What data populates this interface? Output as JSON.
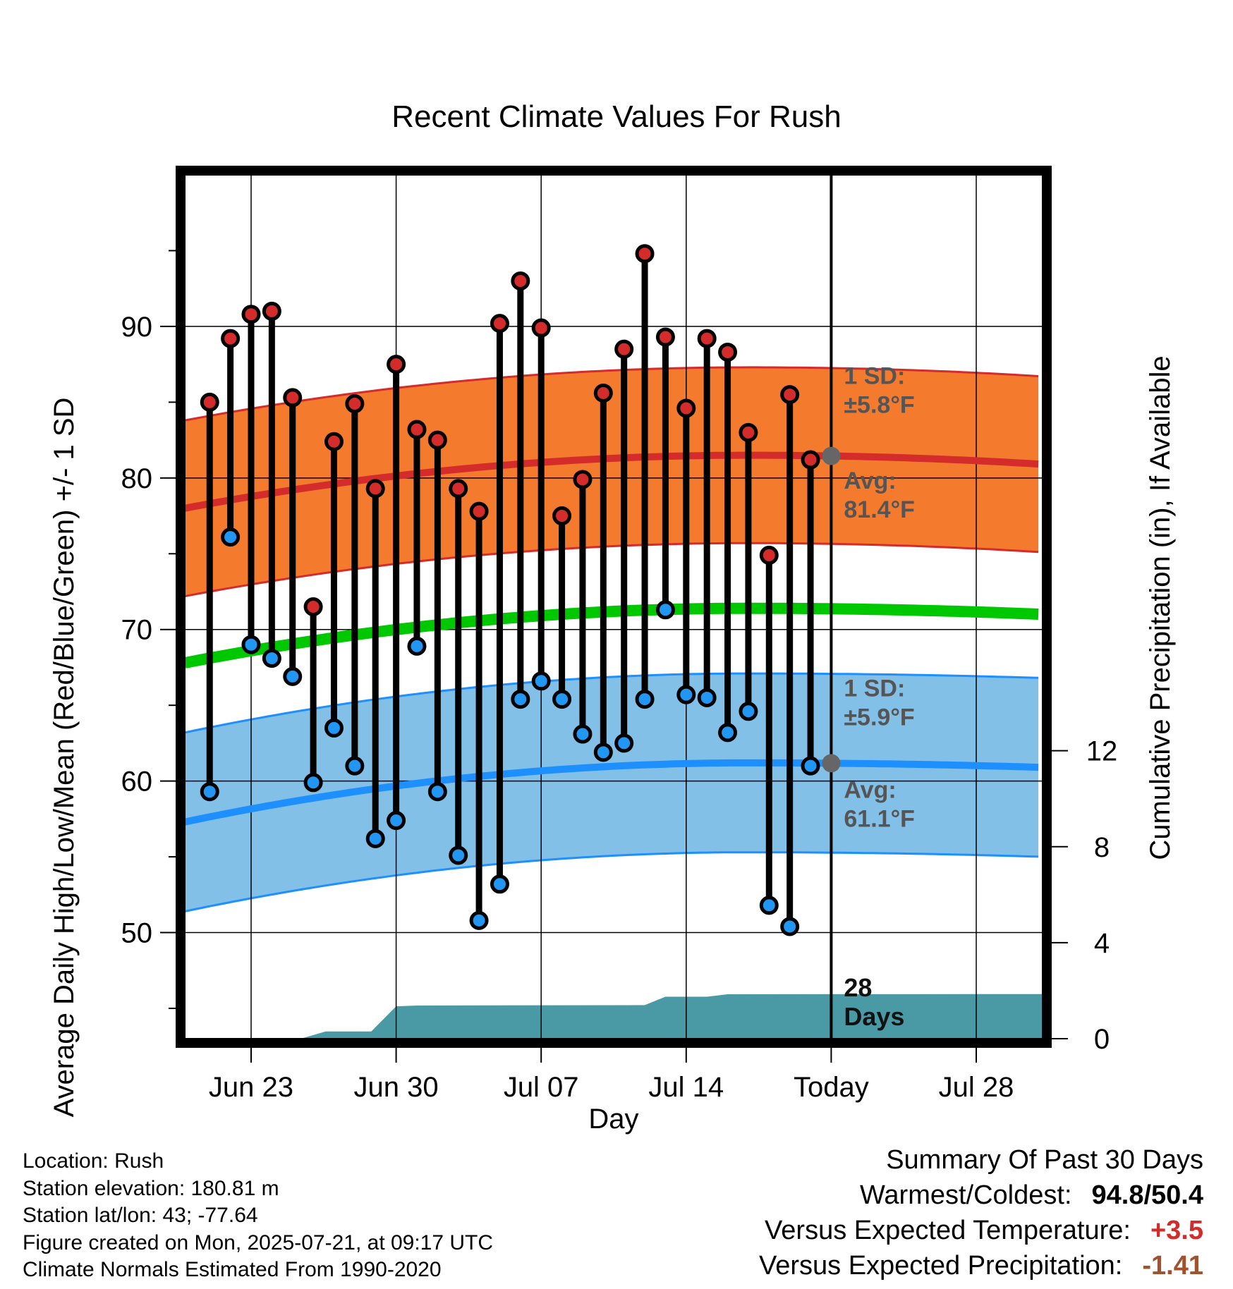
{
  "chart_data": {
    "type": "line",
    "title": "Recent Climate Values For Rush",
    "xlabel": "Day",
    "ylabel": "Average Daily High/Low/Mean (Red/Blue/Green) +/- 1 SD",
    "y2label": "Cumulative Precipitation (in), If Available",
    "x_ticks": [
      {
        "label": "Jun 23",
        "day": 3
      },
      {
        "label": "Jun 30",
        "day": 10
      },
      {
        "label": "Jul 07",
        "day": 17
      },
      {
        "label": "Jul 14",
        "day": 24
      },
      {
        "label": "Today",
        "day": 31
      },
      {
        "label": "Jul 28",
        "day": 38
      }
    ],
    "x_range_days": [
      -0.2,
      41.2
    ],
    "ylim": [
      43,
      100
    ],
    "y_ticks": [
      50,
      60,
      70,
      80,
      90
    ],
    "y2lim": [
      0,
      36
    ],
    "y2_ticks": [
      0,
      4,
      8,
      12
    ],
    "grid": true,
    "days": [
      1,
      2,
      3,
      4,
      5,
      6,
      7,
      8,
      9,
      10,
      11,
      12,
      13,
      14,
      15,
      16,
      17,
      18,
      19,
      20,
      21,
      22,
      23,
      24,
      25,
      26,
      27,
      28,
      29,
      30
    ],
    "series": [
      {
        "name": "High",
        "values": [
          85.0,
          89.2,
          90.8,
          91.0,
          85.3,
          71.5,
          82.4,
          84.9,
          79.3,
          87.5,
          83.2,
          82.5,
          79.3,
          77.8,
          90.2,
          93.0,
          89.9,
          77.5,
          79.9,
          85.6,
          88.5,
          94.8,
          89.3,
          84.6,
          89.2,
          88.3,
          83.0,
          74.9,
          85.5,
          81.2
        ]
      },
      {
        "name": "Low",
        "values": [
          59.3,
          76.1,
          69.0,
          68.1,
          66.9,
          59.9,
          63.5,
          61.0,
          56.2,
          57.4,
          68.9,
          59.3,
          55.1,
          50.8,
          53.2,
          65.4,
          66.6,
          65.4,
          63.1,
          61.9,
          62.5,
          65.4,
          71.3,
          65.7,
          65.5,
          63.2,
          64.6,
          51.8,
          50.4,
          61.0
        ]
      }
    ],
    "normals": {
      "high_avg_start": 78.0,
      "high_avg_peak": 81.5,
      "high_avg_end": 80.9,
      "high_sd": 5.8,
      "low_avg_start": 57.3,
      "low_avg_peak": 61.2,
      "low_avg_end": 60.9,
      "low_sd": 5.9,
      "mean_start": 67.8,
      "mean_peak": 71.4,
      "mean_end": 71.0
    },
    "precip_cumulative": [
      {
        "day": 0,
        "value": 0
      },
      {
        "day": 5.4,
        "value": 0
      },
      {
        "day": 6.6,
        "value": 0.3
      },
      {
        "day": 8.8,
        "value": 0.3
      },
      {
        "day": 10.0,
        "value": 1.35
      },
      {
        "day": 11,
        "value": 1.38
      },
      {
        "day": 22,
        "value": 1.4
      },
      {
        "day": 23,
        "value": 1.75
      },
      {
        "day": 25,
        "value": 1.75
      },
      {
        "day": 26,
        "value": 1.85
      },
      {
        "day": 41.2,
        "value": 1.86
      }
    ],
    "annotations": {
      "high_sd": [
        "1 SD:",
        "±5.8°F"
      ],
      "high_avg": [
        "Avg:",
        "81.4°F"
      ],
      "low_sd": [
        "1 SD:",
        "±5.9°F"
      ],
      "low_avg": [
        "Avg:",
        "61.1°F"
      ],
      "precip_days": [
        "28",
        "Days"
      ]
    },
    "colors": {
      "high_band": "#f47b2e",
      "high_line": "#d42b2b",
      "low_band": "#82c0e8",
      "low_line": "#1e8fff",
      "mean_line": "#00c800",
      "precip": "#4a9aa5",
      "high_dot": "#d42b2b",
      "low_dot": "#2196f3",
      "today_dot": "#666666"
    }
  },
  "footer": {
    "location": "Location: Rush",
    "elevation": "Station elevation: 180.81 m",
    "latlon": "Station lat/lon: 43; -77.64",
    "created": "Figure created on Mon, 2025-07-21, at 09:17 UTC",
    "normals": "Climate Normals Estimated From 1990-2020"
  },
  "summary": {
    "heading": "Summary Of Past 30 Days",
    "warm_cold_label": "Warmest/Coldest:",
    "warm_cold_value": "94.8/50.4",
    "temp_label": "Versus Expected Temperature:",
    "temp_value": "+3.5",
    "precip_label": "Versus Expected Precipitation:",
    "precip_value": "-1.41"
  }
}
